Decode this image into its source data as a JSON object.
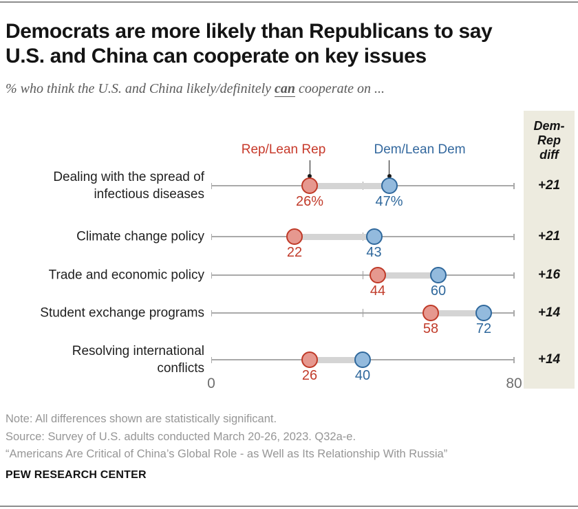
{
  "header": {
    "title_line1": "Democrats are more likely than Republicans to say",
    "title_line2": "U.S. and China can cooperate on key issues",
    "subtitle_prefix": "% who think the U.S. and China likely/definitely ",
    "subtitle_emphasis": "can",
    "subtitle_suffix": " cooperate on ..."
  },
  "chart_data": {
    "type": "dumbbell-dot-plot",
    "title": "Democrats are more likely than Republicans to say U.S. and China can cooperate on key issues",
    "legend": [
      {
        "name": "rep",
        "label": "Rep/Lean Rep",
        "color": "#c7392a"
      },
      {
        "name": "dem",
        "label": "Dem/Lean Dem",
        "color": "#33689e"
      }
    ],
    "x_axis": {
      "min": 0,
      "max": 80,
      "tick_labels": [
        "0",
        "80"
      ],
      "mid_tick": 40,
      "grid": false
    },
    "diff_header": "Dem-\nRep\ndiff",
    "rows": [
      {
        "label": "Dealing with the spread of\ninfectious diseases",
        "rep": 26,
        "dem": 47,
        "rep_label": "26%",
        "dem_label": "47%",
        "diff": "+21"
      },
      {
        "label": "Climate change policy",
        "rep": 22,
        "dem": 43,
        "rep_label": "22",
        "dem_label": "43",
        "diff": "+21"
      },
      {
        "label": "Trade and economic policy",
        "rep": 44,
        "dem": 60,
        "rep_label": "44",
        "dem_label": "60",
        "diff": "+16"
      },
      {
        "label": "Student exchange programs",
        "rep": 58,
        "dem": 72,
        "rep_label": "58",
        "dem_label": "72",
        "diff": "+14"
      },
      {
        "label": "Resolving international\nconflicts",
        "rep": 26,
        "dem": 40,
        "rep_label": "26",
        "dem_label": "40",
        "diff": "+14"
      }
    ],
    "colors": {
      "rep_text": "#c7392a",
      "rep_fill": "#e6988f",
      "rep_stroke": "#bf3927",
      "dem_text": "#33689e",
      "dem_fill": "#93badd",
      "dem_stroke": "#2f689c",
      "connector_bar": "#d4d4d4",
      "axis": "#a9a9a9",
      "diff_panel_bg": "#edebdf"
    }
  },
  "footer": {
    "note": "Note: All differences shown are statistically significant.",
    "source": "Source: Survey of U.S. adults conducted March 20-26, 2023. Q32a-e.",
    "report": "“Americans Are Critical of China’s Global Role - as Well as Its Relationship With Russia”",
    "brand": "PEW RESEARCH CENTER"
  }
}
